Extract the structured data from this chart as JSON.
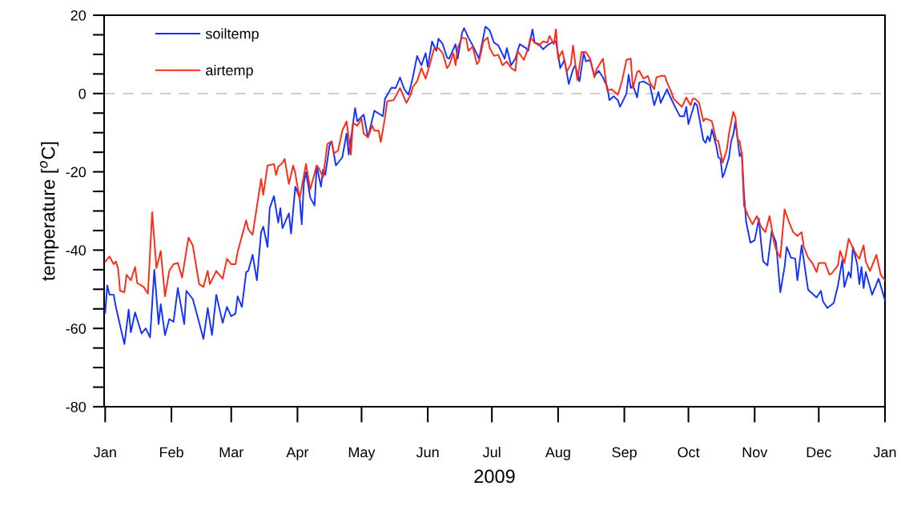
{
  "chart_data": {
    "type": "line",
    "xlabel": "2009",
    "ylabel": "temperature [$^{o}$C]",
    "xlim": [
      "2008-12-31T12:00",
      "2010-01-01"
    ],
    "ylim": [
      -80,
      20
    ],
    "xticks": [
      {
        "value": "2009-01-01",
        "label": "Jan"
      },
      {
        "value": "2009-02-01",
        "label": "Feb"
      },
      {
        "value": "2009-03-01",
        "label": "Mar"
      },
      {
        "value": "2009-04-01",
        "label": "Apr"
      },
      {
        "value": "2009-05-01",
        "label": "May"
      },
      {
        "value": "2009-06-01",
        "label": "Jun"
      },
      {
        "value": "2009-07-01",
        "label": "Jul"
      },
      {
        "value": "2009-08-01",
        "label": "Aug"
      },
      {
        "value": "2009-09-01",
        "label": "Sep"
      },
      {
        "value": "2009-10-01",
        "label": "Oct"
      },
      {
        "value": "2009-11-01",
        "label": "Nov"
      },
      {
        "value": "2009-12-01",
        "label": "Dec"
      },
      {
        "value": "2010-01-01",
        "label": "Jan"
      }
    ],
    "yticks": [
      -80,
      {
        "value": -75,
        "label": null
      },
      {
        "value": -70,
        "label": null
      },
      {
        "value": -65,
        "label": null
      },
      -60,
      {
        "value": -55,
        "label": null
      },
      {
        "value": -50,
        "label": null
      },
      {
        "value": -45,
        "label": null
      },
      -40,
      {
        "value": -35,
        "label": null
      },
      {
        "value": -30,
        "label": null
      },
      {
        "value": -25,
        "label": null
      },
      -20,
      {
        "value": -15,
        "label": null
      },
      {
        "value": -10,
        "label": null
      },
      {
        "value": -5,
        "label": null
      },
      0,
      {
        "value": 5,
        "label": null
      },
      {
        "value": 10,
        "label": null
      },
      {
        "value": 15,
        "label": null
      },
      20
    ],
    "grid": false,
    "legend": "top left",
    "line_style": "solid",
    "marker": "none",
    "ref_lines": [
      {
        "axis": "y",
        "value": 0,
        "color": "#c8c8c8",
        "line_style": "dashed"
      }
    ],
    "series": [
      {
        "name": "soiltemp",
        "color": "#1432ff",
        "x": [
          "2009-01-01",
          "2009-01-02",
          "2009-01-03",
          "2009-01-05",
          "2009-01-06",
          "2009-01-08",
          "2009-01-10",
          "2009-01-12",
          "2009-01-13",
          "2009-01-15",
          "2009-01-18",
          "2009-01-20",
          "2009-01-22",
          "2009-01-24",
          "2009-01-26",
          "2009-01-27",
          "2009-01-29",
          "2009-01-31",
          "2009-02-02",
          "2009-02-04",
          "2009-02-07",
          "2009-02-08",
          "2009-02-11",
          "2009-02-13",
          "2009-02-16",
          "2009-02-18",
          "2009-02-20",
          "2009-02-22",
          "2009-02-25",
          "2009-02-27",
          "2009-03-01",
          "2009-03-03",
          "2009-03-04",
          "2009-03-06",
          "2009-03-08",
          "2009-03-09",
          "2009-03-11",
          "2009-03-13",
          "2009-03-15",
          "2009-03-16",
          "2009-03-18",
          "2009-03-19",
          "2009-03-21",
          "2009-03-23",
          "2009-03-24",
          "2009-03-25",
          "2009-03-28",
          "2009-03-29",
          "2009-03-31",
          "2009-04-02",
          "2009-04-03",
          "2009-04-04",
          "2009-04-05",
          "2009-04-07",
          "2009-04-09",
          "2009-04-10",
          "2009-04-12",
          "2009-04-13",
          "2009-04-14",
          "2009-04-16",
          "2009-04-17",
          "2009-04-19",
          "2009-04-22",
          "2009-04-24",
          "2009-04-25",
          "2009-04-28",
          "2009-04-29",
          "2009-05-02",
          "2009-05-04",
          "2009-05-07",
          "2009-05-09",
          "2009-05-11",
          "2009-05-12",
          "2009-05-15",
          "2009-05-17",
          "2009-05-19",
          "2009-05-21",
          "2009-05-23",
          "2009-05-25",
          "2009-05-27",
          "2009-05-29",
          "2009-05-31",
          "2009-06-01",
          "2009-06-03",
          "2009-06-05",
          "2009-06-06",
          "2009-06-08",
          "2009-06-10",
          "2009-06-11",
          "2009-06-14",
          "2009-06-15",
          "2009-06-17",
          "2009-06-18",
          "2009-06-20",
          "2009-06-22",
          "2009-06-25",
          "2009-06-28",
          "2009-06-30",
          "2009-07-02",
          "2009-07-04",
          "2009-07-07",
          "2009-07-08",
          "2009-07-10",
          "2009-07-12",
          "2009-07-14",
          "2009-07-17",
          "2009-07-18",
          "2009-07-20",
          "2009-07-21",
          "2009-07-23",
          "2009-07-25",
          "2009-07-27",
          "2009-07-29",
          "2009-07-31",
          "2009-08-02",
          "2009-08-04",
          "2009-08-06",
          "2009-08-08",
          "2009-08-09",
          "2009-08-11",
          "2009-08-13",
          "2009-08-14",
          "2009-08-16",
          "2009-08-18",
          "2009-08-20",
          "2009-08-22",
          "2009-08-24",
          "2009-08-25",
          "2009-08-27",
          "2009-08-29",
          "2009-08-30",
          "2009-09-02",
          "2009-09-03",
          "2009-09-04",
          "2009-09-05",
          "2009-09-07",
          "2009-09-08",
          "2009-09-10",
          "2009-09-13",
          "2009-09-15",
          "2009-09-17",
          "2009-09-18",
          "2009-09-21",
          "2009-09-22",
          "2009-09-25",
          "2009-09-27",
          "2009-09-29",
          "2009-09-30",
          "2009-10-01",
          "2009-10-04",
          "2009-10-05",
          "2009-10-08",
          "2009-10-09",
          "2009-10-10",
          "2009-10-11",
          "2009-10-12",
          "2009-10-14",
          "2009-10-15",
          "2009-10-16",
          "2009-10-17",
          "2009-10-18",
          "2009-10-20",
          "2009-10-21",
          "2009-10-22",
          "2009-10-23",
          "2009-10-24",
          "2009-10-25",
          "2009-10-26",
          "2009-10-27",
          "2009-10-28",
          "2009-10-30",
          "2009-11-01",
          "2009-11-03",
          "2009-11-04",
          "2009-11-05",
          "2009-11-07",
          "2009-11-09",
          "2009-11-11",
          "2009-11-13",
          "2009-11-15",
          "2009-11-16",
          "2009-11-18",
          "2009-11-20",
          "2009-11-21",
          "2009-11-23",
          "2009-11-26",
          "2009-11-30",
          "2009-12-02",
          "2009-12-03",
          "2009-12-05",
          "2009-12-08",
          "2009-12-10",
          "2009-12-12",
          "2009-12-13",
          "2009-12-15",
          "2009-12-16",
          "2009-12-17",
          "2009-12-19",
          "2009-12-20",
          "2009-12-21",
          "2009-12-22",
          "2009-12-23",
          "2009-12-26",
          "2009-12-29",
          "2010-01-01"
        ],
        "values": [
          -56,
          -49,
          -51.4,
          -51.4,
          -54.5,
          -59.3,
          -64,
          -55.2,
          -61,
          -55.9,
          -61.3,
          -60,
          -62.3,
          -45,
          -58.9,
          -53.8,
          -61.7,
          -57.6,
          -58.3,
          -49.7,
          -58.9,
          -50.4,
          -52.5,
          -56.5,
          -62.7,
          -54.8,
          -61.7,
          -51.4,
          -58.6,
          -54.5,
          -56.9,
          -56.2,
          -51.8,
          -54.5,
          -45.6,
          -45.3,
          -41.2,
          -47.7,
          -35.4,
          -34,
          -39.2,
          -29.3,
          -26.2,
          -33,
          -29.3,
          -34.4,
          -30.6,
          -35.8,
          -23.8,
          -26.6,
          -33.4,
          -22.8,
          -20.1,
          -26.6,
          -28.6,
          -18.4,
          -23.8,
          -19.4,
          -20.8,
          -13.3,
          -12.2,
          -18.4,
          -16.3,
          -10.2,
          -15.6,
          -3.7,
          -7.1,
          -5.4,
          -11.2,
          -4.4,
          -5.1,
          -5.8,
          -1.3,
          1.5,
          1.4,
          4.1,
          1.1,
          -0.3,
          4.1,
          9.6,
          7.2,
          10.3,
          6.8,
          13.3,
          10.9,
          14,
          12.6,
          9.2,
          8.9,
          12.6,
          8.9,
          15.4,
          16.7,
          14.3,
          12.3,
          8.9,
          17.1,
          16.1,
          13,
          12.3,
          8.9,
          11.6,
          7.2,
          8.9,
          12.6,
          11.6,
          10.9,
          16.4,
          13,
          12.6,
          11.3,
          12.3,
          13,
          13.3,
          6.5,
          8.6,
          2.4,
          6.2,
          7.2,
          3.1,
          10.3,
          8.2,
          8.6,
          4.5,
          5.8,
          4.1,
          1.7,
          -1.7,
          -0.7,
          -1.7,
          -3.4,
          0,
          4.8,
          1.4,
          2.1,
          -1,
          2.8,
          3.1,
          2.1,
          -3,
          0.4,
          -2.4,
          1.1,
          -0.3,
          -3.7,
          -5.8,
          -5.8,
          -3.4,
          -7.8,
          -2.4,
          -3,
          -11.9,
          -12.6,
          -10.9,
          -12.2,
          -9.2,
          -13.3,
          -16.3,
          -16.7,
          -21.4,
          -20.1,
          -16.3,
          -12.2,
          -10.5,
          -7.1,
          -11.6,
          -16,
          -15,
          -25.5,
          -32.7,
          -38.1,
          -37.5,
          -32,
          -38.1,
          -42.9,
          -43.9,
          -35.1,
          -38.1,
          -50.8,
          -44.3,
          -39.2,
          -41.9,
          -42.2,
          -47.7,
          -38.8,
          -50.1,
          -52.1,
          -50.4,
          -53.1,
          -54.8,
          -53.5,
          -49,
          -42.6,
          -49.4,
          -45.6,
          -47,
          -39.2,
          -43.6,
          -48.7,
          -44.3,
          -49.7,
          -45.6,
          -51.4,
          -47.3,
          -52.8
        ]
      },
      {
        "name": "airtemp",
        "color": "#ff2a14",
        "x": [
          "2009-01-01",
          "2009-01-03",
          "2009-01-05",
          "2009-01-06",
          "2009-01-07",
          "2009-01-08",
          "2009-01-10",
          "2009-01-11",
          "2009-01-13",
          "2009-01-15",
          "2009-01-16",
          "2009-01-19",
          "2009-01-21",
          "2009-01-23",
          "2009-01-25",
          "2009-01-27",
          "2009-01-29",
          "2009-01-31",
          "2009-02-02",
          "2009-02-04",
          "2009-02-06",
          "2009-02-09",
          "2009-02-11",
          "2009-02-14",
          "2009-02-16",
          "2009-02-18",
          "2009-02-19",
          "2009-02-22",
          "2009-02-25",
          "2009-02-27",
          "2009-03-01",
          "2009-03-03",
          "2009-03-04",
          "2009-03-08",
          "2009-03-09",
          "2009-03-11",
          "2009-03-15",
          "2009-03-16",
          "2009-03-18",
          "2009-03-21",
          "2009-03-22",
          "2009-03-23",
          "2009-03-25",
          "2009-03-26",
          "2009-03-28",
          "2009-03-30",
          "2009-03-31",
          "2009-04-02",
          "2009-04-05",
          "2009-04-07",
          "2009-04-10",
          "2009-04-11",
          "2009-04-13",
          "2009-04-15",
          "2009-04-17",
          "2009-04-18",
          "2009-04-20",
          "2009-04-22",
          "2009-04-24",
          "2009-04-26",
          "2009-04-27",
          "2009-04-29",
          "2009-05-01",
          "2009-05-02",
          "2009-05-04",
          "2009-05-06",
          "2009-05-07",
          "2009-05-09",
          "2009-05-10",
          "2009-05-12",
          "2009-05-13",
          "2009-05-16",
          "2009-05-17",
          "2009-05-19",
          "2009-05-22",
          "2009-05-24",
          "2009-05-25",
          "2009-05-27",
          "2009-05-29",
          "2009-05-31",
          "2009-06-02",
          "2009-06-04",
          "2009-06-06",
          "2009-06-08",
          "2009-06-10",
          "2009-06-11",
          "2009-06-13",
          "2009-06-14",
          "2009-06-15",
          "2009-06-17",
          "2009-06-19",
          "2009-06-20",
          "2009-06-22",
          "2009-06-24",
          "2009-06-25",
          "2009-06-27",
          "2009-06-29",
          "2009-06-30",
          "2009-07-02",
          "2009-07-04",
          "2009-07-06",
          "2009-07-08",
          "2009-07-10",
          "2009-07-12",
          "2009-07-13",
          "2009-07-16",
          "2009-07-18",
          "2009-07-19",
          "2009-07-21",
          "2009-07-23",
          "2009-07-25",
          "2009-07-27",
          "2009-07-28",
          "2009-07-30",
          "2009-07-31",
          "2009-08-01",
          "2009-08-03",
          "2009-08-05",
          "2009-08-07",
          "2009-08-08",
          "2009-08-10",
          "2009-08-12",
          "2009-08-14",
          "2009-08-16",
          "2009-08-18",
          "2009-08-19",
          "2009-08-22",
          "2009-08-24",
          "2009-08-26",
          "2009-08-29",
          "2009-08-31",
          "2009-09-02",
          "2009-09-04",
          "2009-09-05",
          "2009-09-07",
          "2009-09-08",
          "2009-09-10",
          "2009-09-12",
          "2009-09-13",
          "2009-09-15",
          "2009-09-16",
          "2009-09-18",
          "2009-09-20",
          "2009-09-21",
          "2009-09-23",
          "2009-09-24",
          "2009-09-26",
          "2009-09-28",
          "2009-09-30",
          "2009-10-02",
          "2009-10-03",
          "2009-10-04",
          "2009-10-06",
          "2009-10-07",
          "2009-10-08",
          "2009-10-09",
          "2009-10-11",
          "2009-10-12",
          "2009-10-14",
          "2009-10-15",
          "2009-10-17",
          "2009-10-19",
          "2009-10-20",
          "2009-10-22",
          "2009-10-23",
          "2009-10-24",
          "2009-10-25",
          "2009-10-26",
          "2009-10-27",
          "2009-10-29",
          "2009-10-31",
          "2009-11-02",
          "2009-11-04",
          "2009-11-06",
          "2009-11-08",
          "2009-11-10",
          "2009-11-11",
          "2009-11-13",
          "2009-11-15",
          "2009-11-17",
          "2009-11-19",
          "2009-11-21",
          "2009-11-23",
          "2009-11-24",
          "2009-11-26",
          "2009-11-28",
          "2009-11-30",
          "2009-12-01",
          "2009-12-04",
          "2009-12-06",
          "2009-12-07",
          "2009-12-10",
          "2009-12-11",
          "2009-12-13",
          "2009-12-15",
          "2009-12-17",
          "2009-12-19",
          "2009-12-20",
          "2009-12-22",
          "2009-12-23",
          "2009-12-25",
          "2009-12-28",
          "2009-12-30",
          "2010-01-01"
        ],
        "values": [
          -43,
          -41.6,
          -43.6,
          -42.9,
          -44.6,
          -50.4,
          -50.8,
          -46.3,
          -47.7,
          -44.3,
          -48.4,
          -49.4,
          -51.1,
          -30.3,
          -44.6,
          -40.2,
          -51.8,
          -45.3,
          -43.6,
          -43.3,
          -47,
          -36.8,
          -38.8,
          -48.7,
          -49.4,
          -45.3,
          -48.7,
          -45.3,
          -47.3,
          -42.2,
          -43.6,
          -43.6,
          -40.5,
          -32.4,
          -34.7,
          -36.1,
          -21.8,
          -25.9,
          -18.4,
          -18,
          -20.8,
          -18.7,
          -17.7,
          -16.7,
          -23.1,
          -18.4,
          -20.4,
          -26.9,
          -18,
          -24.5,
          -18.4,
          -19.1,
          -21.4,
          -12.9,
          -12.2,
          -15.3,
          -14.6,
          -9.5,
          -7.1,
          -15.6,
          -7.5,
          -8.2,
          -6.5,
          -10.2,
          -11.2,
          -8.2,
          -9.5,
          -9.5,
          -12.4,
          -6.1,
          -2,
          -1.7,
          -0.7,
          1.4,
          -2.4,
          -0.3,
          1.7,
          3.1,
          6.5,
          3.8,
          7.5,
          11.6,
          11.6,
          10.3,
          6.5,
          7.2,
          10.3,
          7.2,
          11.6,
          14.3,
          14,
          10.9,
          12,
          7.5,
          8.2,
          13.3,
          14.3,
          11.6,
          9.6,
          9.9,
          7.2,
          8.2,
          6.5,
          5.8,
          10.9,
          8.6,
          11.6,
          14.3,
          13,
          12.3,
          13.3,
          13,
          14.7,
          12.6,
          16.4,
          8.9,
          10.9,
          5.5,
          7.5,
          12.3,
          3.4,
          10.6,
          10.6,
          8.9,
          4.1,
          6.2,
          8.9,
          0.7,
          1.1,
          -0.3,
          3.4,
          8.6,
          8.9,
          1.4,
          5.5,
          5.8,
          3.8,
          4.5,
          2.8,
          1.1,
          4.1,
          4.5,
          4.5,
          2.8,
          0.4,
          -1.3,
          -2.4,
          -3.4,
          -1,
          -3,
          -1.3,
          -1.3,
          -2.4,
          -4.7,
          -7.1,
          -6.4,
          -6.8,
          -7.1,
          -11.9,
          -12.2,
          -17.7,
          -14.3,
          -10.2,
          -4.7,
          -6.1,
          -11.6,
          -12.2,
          -15.6,
          -28.6,
          -31.3,
          -33.4,
          -31.3,
          -34,
          -35.4,
          -31.3,
          -37.8,
          -39.8,
          -41.9,
          -29.6,
          -32.7,
          -35.4,
          -36.4,
          -35.4,
          -39.2,
          -41.9,
          -43.3,
          -45.6,
          -43.3,
          -43.3,
          -46.3,
          -46,
          -43.9,
          -40.2,
          -43.3,
          -37.1,
          -39.5,
          -41.5,
          -42.2,
          -38.8,
          -42.9,
          -45.3,
          -41.2,
          -46.3,
          -47.7
        ]
      }
    ]
  }
}
